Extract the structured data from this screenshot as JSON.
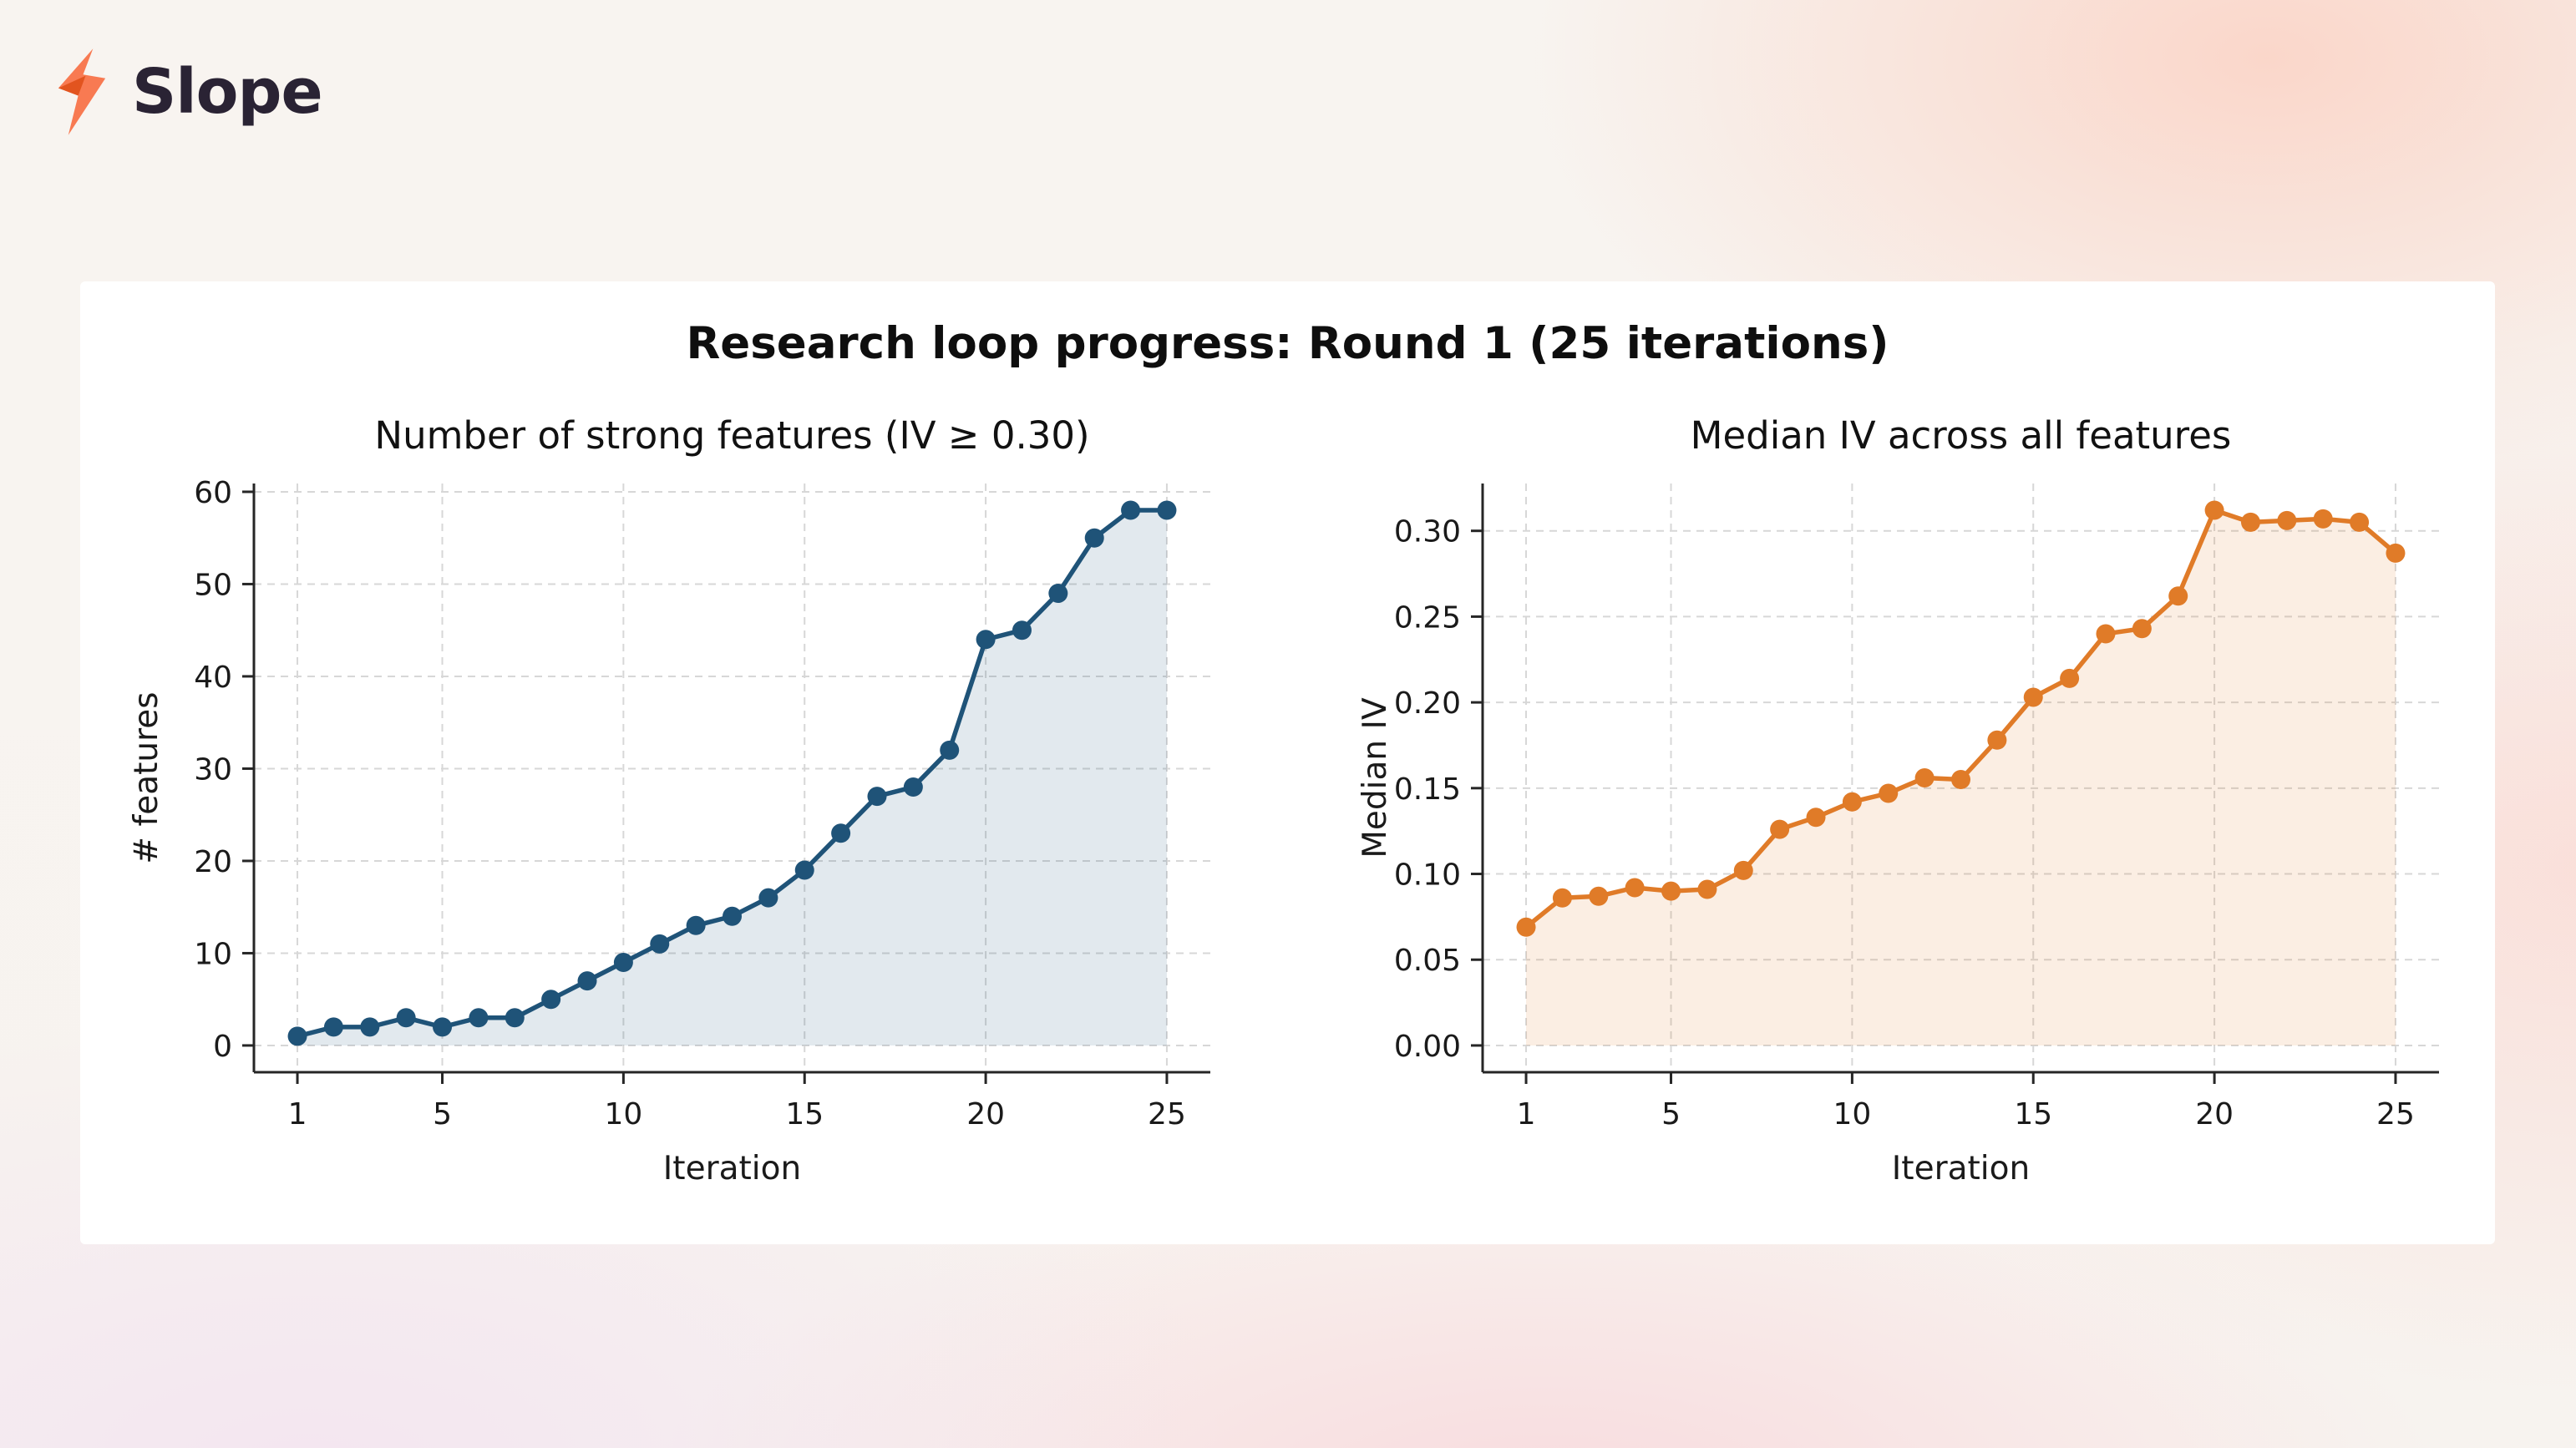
{
  "logo": {
    "text": "Slope",
    "bolt_color_light": "#f87a52",
    "bolt_color_dark": "#e2541f"
  },
  "page_title": "Research loop progress: Round 1 (25 iterations)",
  "chart_data": [
    {
      "type": "line",
      "title": "Number of strong features (IV ≥ 0.30)",
      "xlabel": "Iteration",
      "ylabel": "# features",
      "line_color": "#1f5378",
      "fill_color": "#1f5378",
      "fill_opacity": 0.13,
      "grid": true,
      "x": [
        1,
        2,
        3,
        4,
        5,
        6,
        7,
        8,
        9,
        10,
        11,
        12,
        13,
        14,
        15,
        16,
        17,
        18,
        19,
        20,
        21,
        22,
        23,
        24,
        25
      ],
      "values": [
        1,
        2,
        2,
        3,
        2,
        3,
        3,
        5,
        7,
        9,
        11,
        13,
        14,
        16,
        19,
        23,
        27,
        28,
        32,
        44,
        45,
        49,
        55,
        58,
        58
      ],
      "xticks": [
        1,
        5,
        10,
        15,
        20,
        25
      ],
      "xtick_labels": [
        "1",
        "5",
        "10",
        "15",
        "20",
        "25"
      ],
      "yticks": [
        0,
        10,
        20,
        30,
        40,
        50,
        60
      ],
      "ytick_labels": [
        "0",
        "10",
        "20",
        "30",
        "40",
        "50",
        "60"
      ],
      "xlim": [
        -0.2,
        26.2
      ],
      "ylim": [
        -2.9,
        60.9
      ],
      "fill_baseline": 0
    },
    {
      "type": "line",
      "title": "Median IV across all features",
      "xlabel": "Iteration",
      "ylabel": "Median IV",
      "line_color": "#e07b28",
      "fill_color": "#e07b28",
      "fill_opacity": 0.13,
      "grid": true,
      "x": [
        1,
        2,
        3,
        4,
        5,
        6,
        7,
        8,
        9,
        10,
        11,
        12,
        13,
        14,
        15,
        16,
        17,
        18,
        19,
        20,
        21,
        22,
        23,
        24,
        25
      ],
      "values": [
        0.069,
        0.086,
        0.087,
        0.092,
        0.09,
        0.091,
        0.102,
        0.126,
        0.133,
        0.142,
        0.147,
        0.156,
        0.155,
        0.178,
        0.203,
        0.214,
        0.24,
        0.243,
        0.262,
        0.312,
        0.305,
        0.306,
        0.307,
        0.305,
        0.287
      ],
      "xticks": [
        1,
        5,
        10,
        15,
        20,
        25
      ],
      "xtick_labels": [
        "1",
        "5",
        "10",
        "15",
        "20",
        "25"
      ],
      "yticks": [
        0.0,
        0.05,
        0.1,
        0.15,
        0.2,
        0.25,
        0.3
      ],
      "ytick_labels": [
        "0.00",
        "0.05",
        "0.10",
        "0.15",
        "0.20",
        "0.25",
        "0.30"
      ],
      "xlim": [
        -0.2,
        26.2
      ],
      "ylim": [
        -0.0156,
        0.3276
      ],
      "fill_baseline": 0
    }
  ],
  "style": {
    "grid_color": "#d7d7d7",
    "spine_color": "#262626",
    "tick_text_color": "#1a1a1a",
    "title_text_color": "#111111"
  }
}
